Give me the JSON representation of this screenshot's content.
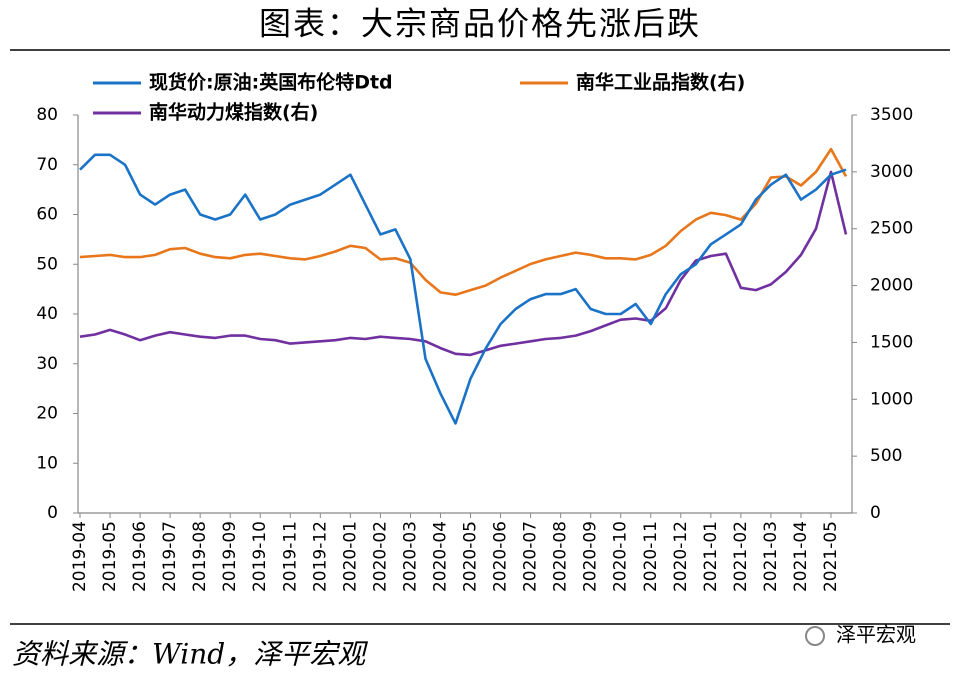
{
  "chart_data": {
    "type": "line",
    "title": "图表：大宗商品价格先涨后跌",
    "source": "资料来源：Wind，泽平宏观",
    "watermark": "泽平宏观",
    "categories": [
      "2019-04",
      null,
      "2019-05",
      null,
      "2019-06",
      null,
      "2019-07",
      null,
      "2019-08",
      null,
      "2019-09",
      null,
      "2019-10",
      null,
      "2019-11",
      null,
      "2019-12",
      null,
      "2020-01",
      null,
      "2020-02",
      null,
      "2020-03",
      null,
      "2020-04",
      null,
      "2020-05",
      null,
      "2020-06",
      null,
      "2020-07",
      null,
      "2020-08",
      null,
      "2020-09",
      null,
      "2020-10",
      null,
      "2020-11",
      null,
      "2020-12",
      null,
      "2021-01",
      null,
      "2021-02",
      null,
      "2021-03",
      null,
      "2021-04",
      null,
      "2021-05",
      null
    ],
    "series": [
      {
        "name": "现货价:原油:英国布伦特Dtd",
        "color": "#1a73c6",
        "axis": "y",
        "values": [
          69,
          72,
          72,
          70,
          64,
          62,
          64,
          65,
          60,
          59,
          60,
          64,
          59,
          60,
          62,
          63,
          64,
          66,
          68,
          62,
          56,
          57,
          51,
          31,
          24,
          18,
          27,
          33,
          38,
          41,
          43,
          44,
          44,
          45,
          41,
          40,
          40,
          42,
          38,
          44,
          48,
          50,
          54,
          56,
          58,
          63,
          66,
          68,
          63,
          65,
          68,
          69
        ]
      },
      {
        "name": "南华工业品指数(右)",
        "color": "#e8761b",
        "axis": "y2",
        "values": [
          2250,
          2260,
          2270,
          2250,
          2250,
          2270,
          2320,
          2330,
          2280,
          2250,
          2240,
          2270,
          2280,
          2260,
          2240,
          2230,
          2260,
          2300,
          2350,
          2330,
          2230,
          2240,
          2200,
          2050,
          1940,
          1920,
          1960,
          2000,
          2070,
          2130,
          2190,
          2230,
          2260,
          2290,
          2270,
          2240,
          2240,
          2230,
          2270,
          2350,
          2480,
          2580,
          2640,
          2620,
          2580,
          2720,
          2950,
          2960,
          2880,
          3000,
          3200,
          2960
        ]
      },
      {
        "name": "南华动力煤指数(右)",
        "color": "#7030a0",
        "axis": "y2",
        "values": [
          1550,
          1570,
          1610,
          1570,
          1520,
          1560,
          1590,
          1570,
          1550,
          1540,
          1560,
          1560,
          1530,
          1520,
          1490,
          1500,
          1510,
          1520,
          1540,
          1530,
          1550,
          1540,
          1530,
          1510,
          1450,
          1400,
          1390,
          1430,
          1470,
          1490,
          1510,
          1530,
          1540,
          1560,
          1600,
          1650,
          1700,
          1710,
          1690,
          1800,
          2050,
          2220,
          2260,
          2280,
          1980,
          1960,
          2010,
          2120,
          2270,
          2500,
          3000,
          2450
        ]
      }
    ],
    "ylim": [
      0,
      80
    ],
    "yticks": [
      0,
      10,
      20,
      30,
      40,
      50,
      60,
      70,
      80
    ],
    "y2lim": [
      0,
      3500
    ],
    "y2ticks": [
      0,
      500,
      1000,
      1500,
      2000,
      2500,
      3000,
      3500
    ],
    "grid": false
  }
}
